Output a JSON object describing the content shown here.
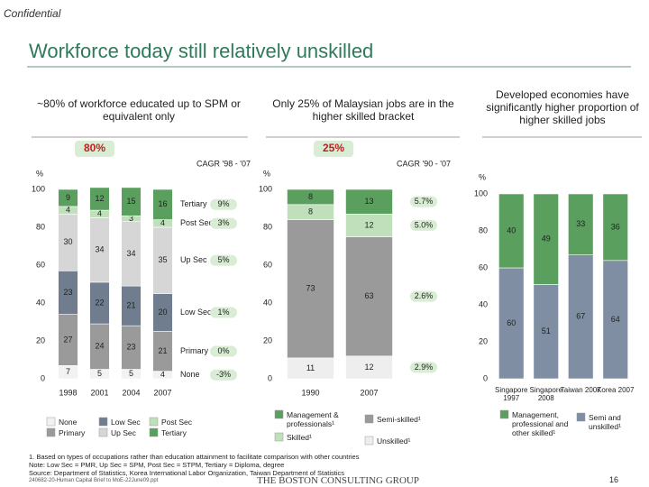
{
  "header": {
    "confidential": "Confidential",
    "title": "Workforce today still relatively unskilled"
  },
  "chart_data": [
    {
      "type": "bar",
      "stacked": true,
      "title": "~80% of workforce educated up to SPM or equivalent only",
      "callout": "80%",
      "cagr_title": "CAGR '98 - '07",
      "y_label": "%",
      "categories": [
        "1998",
        "2001",
        "2004",
        "2007"
      ],
      "series": [
        {
          "name": "None",
          "color": "#f2f2f2",
          "values": [
            7,
            5,
            5,
            4
          ],
          "cagr": "-3%"
        },
        {
          "name": "Primary",
          "color": "#9a9a9a",
          "values": [
            27,
            24,
            23,
            21
          ],
          "cagr": "0%"
        },
        {
          "name": "Low Sec",
          "color": "#6f7d8f",
          "values": [
            23,
            22,
            21,
            20
          ],
          "cagr": "1%"
        },
        {
          "name": "Up Sec",
          "color": "#d6d6d6",
          "values": [
            30,
            34,
            34,
            35
          ],
          "cagr": "5%"
        },
        {
          "name": "Post Sec",
          "color": "#bfe0ba",
          "values": [
            4,
            4,
            3,
            4
          ],
          "cagr": "3%"
        },
        {
          "name": "Tertiary",
          "color": "#5a9f5e",
          "values": [
            9,
            12,
            15,
            16
          ],
          "cagr": "9%"
        }
      ],
      "ylim": [
        0,
        100
      ],
      "yticks": [
        0,
        20,
        40,
        60,
        80,
        100
      ]
    },
    {
      "type": "bar",
      "stacked": true,
      "title": "Only 25% of Malaysian jobs are in the higher skilled bracket",
      "callout": "25%",
      "cagr_title": "CAGR '90 - '07",
      "y_label": "%",
      "categories": [
        "1990",
        "2007"
      ],
      "series": [
        {
          "name": "Unskilled¹",
          "color": "#eeeeee",
          "values": [
            11,
            12
          ],
          "cagr": "2.9%"
        },
        {
          "name": "Semi-skilled¹",
          "color": "#9a9a9a",
          "values": [
            73,
            63
          ],
          "cagr": "2.6%"
        },
        {
          "name": "Skilled¹",
          "color": "#bfe0ba",
          "values": [
            8,
            12
          ],
          "cagr": "5.0%"
        },
        {
          "name": "Management & professionals¹",
          "color": "#5a9f5e",
          "values": [
            8,
            13
          ],
          "cagr": "5.7%"
        }
      ],
      "ylim": [
        0,
        100
      ],
      "yticks": [
        0,
        20,
        40,
        60,
        80,
        100
      ]
    },
    {
      "type": "bar",
      "stacked": true,
      "title": "Developed economies have significantly higher proportion of higher skilled jobs",
      "y_label": "%",
      "categories": [
        "Singapore 1997",
        "Singapore 2008",
        "Taiwan 2007",
        "Korea 2007"
      ],
      "series": [
        {
          "name": "Semi and unskilled¹",
          "color": "#7f8ea3",
          "values": [
            60,
            51,
            67,
            64
          ]
        },
        {
          "name": "Management, professional and other skilled¹",
          "color": "#5a9f5e",
          "values": [
            40,
            49,
            33,
            36
          ]
        }
      ],
      "ylim": [
        0,
        100
      ],
      "yticks": [
        0,
        20,
        40,
        60,
        80,
        100
      ]
    }
  ],
  "footer": {
    "notes": [
      "1. Based on types of occupations rather than education attainment to facilitate comparison with other countries",
      "Note: Low Sec = PMR, Up Sec = SPM, Post Sec = STPM, Tertiary = Diploma, degree",
      "Source: Department of Statistics, Korea International Labor Organization, Taiwan Department of Statistics"
    ],
    "file": "240682-20-Human Capital Brief to MoE-22June09.ppt",
    "brand": "THE BOSTON CONSULTING GROUP",
    "page": 16
  }
}
